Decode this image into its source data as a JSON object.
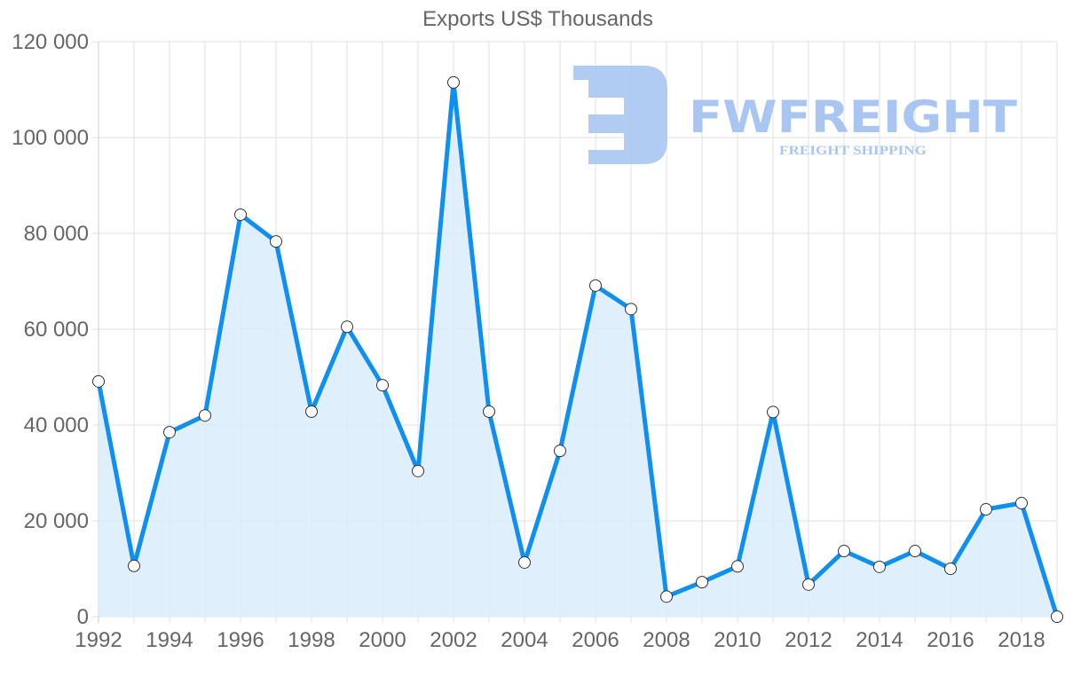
{
  "chart_data": {
    "type": "area",
    "title": "Exports US$ Thousands",
    "xlabel": "",
    "ylabel": "",
    "x": [
      1992,
      1993,
      1994,
      1995,
      1996,
      1997,
      1998,
      1999,
      2000,
      2001,
      2002,
      2003,
      2004,
      2005,
      2006,
      2007,
      2008,
      2009,
      2010,
      2011,
      2012,
      2013,
      2014,
      2015,
      2016,
      2017,
      2018,
      2019
    ],
    "series": [
      {
        "name": "Exports US$ Thousands",
        "values": [
          49100,
          10600,
          38500,
          42000,
          83900,
          78300,
          42800,
          60500,
          48300,
          30400,
          111500,
          42800,
          11300,
          34600,
          69100,
          64200,
          4200,
          7200,
          10500,
          42700,
          6700,
          13700,
          10400,
          13700,
          10000,
          22400,
          23700,
          0
        ]
      }
    ],
    "ylim": [
      0,
      120000
    ],
    "yticks": [
      "0",
      "20 000",
      "40 000",
      "60 000",
      "80 000",
      "100 000",
      "120 000"
    ],
    "xticks": [
      "1992",
      "1994",
      "1996",
      "1998",
      "2000",
      "2002",
      "2004",
      "2006",
      "2008",
      "2010",
      "2012",
      "2014",
      "2016",
      "2018"
    ],
    "grid": true,
    "legend": "none",
    "colors": {
      "line": "#0f8ff0",
      "fill": "#d9ecfc",
      "point_fill": "#ffffff",
      "point_stroke": "#333333",
      "grid": "#e1e1e1"
    }
  },
  "watermark": {
    "brand": "FWFREIGHT",
    "tagline": "FREIGHT SHIPPING",
    "color": "#a9c6f2"
  }
}
